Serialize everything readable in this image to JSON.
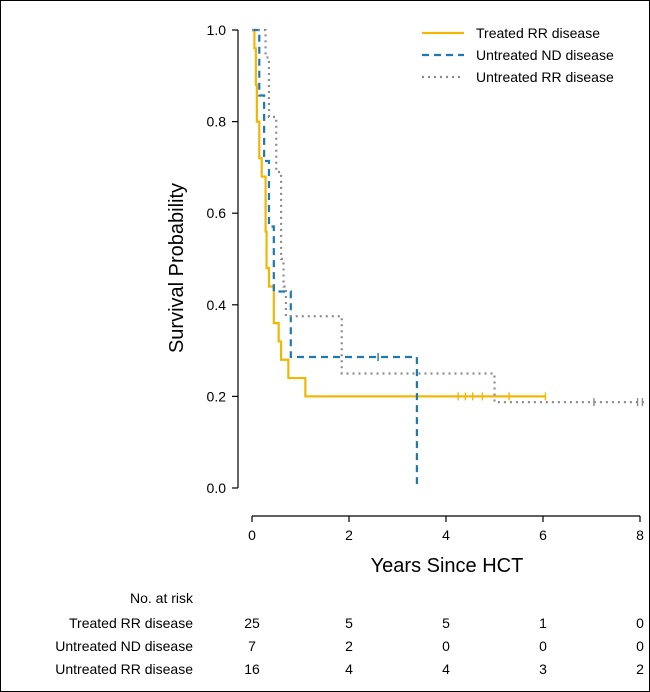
{
  "chart_data": {
    "type": "line",
    "subtype": "kaplan-meier",
    "xlabel": "Years Since HCT",
    "ylabel": "Survival Probability",
    "xlim": [
      0,
      8
    ],
    "ylim": [
      0,
      1
    ],
    "x_ticks": [
      0,
      2,
      4,
      6,
      8
    ],
    "y_ticks": [
      "0.0",
      "0.2",
      "0.4",
      "0.6",
      "0.8",
      "1.0"
    ],
    "legend_position": "top-right",
    "series": [
      {
        "name": "Treated RR disease",
        "color": "#f2b705",
        "style": "solid",
        "steps": [
          [
            0,
            1.0
          ],
          [
            0.05,
            0.96
          ],
          [
            0.08,
            0.88
          ],
          [
            0.1,
            0.8
          ],
          [
            0.15,
            0.72
          ],
          [
            0.2,
            0.68
          ],
          [
            0.28,
            0.56
          ],
          [
            0.3,
            0.48
          ],
          [
            0.35,
            0.44
          ],
          [
            0.45,
            0.36
          ],
          [
            0.55,
            0.32
          ],
          [
            0.6,
            0.28
          ],
          [
            0.75,
            0.24
          ],
          [
            1.1,
            0.2
          ],
          [
            6.05,
            0.2
          ]
        ],
        "censor_x": [
          4.25,
          4.4,
          4.55,
          4.75,
          5.3,
          6.05
        ]
      },
      {
        "name": "Untreated ND disease",
        "color": "#1f78b4",
        "style": "dashed",
        "steps": [
          [
            0,
            1.0
          ],
          [
            0.15,
            0.857
          ],
          [
            0.25,
            0.714
          ],
          [
            0.35,
            0.571
          ],
          [
            0.45,
            0.429
          ],
          [
            0.8,
            0.286
          ],
          [
            3.4,
            0.0
          ],
          [
            3.4,
            0.0
          ]
        ],
        "censor_x": [
          2.6
        ]
      },
      {
        "name": "Untreated RR disease",
        "color": "#8c8c8c",
        "style": "dotted",
        "steps": [
          [
            0,
            1.0
          ],
          [
            0.28,
            0.94
          ],
          [
            0.35,
            0.81
          ],
          [
            0.5,
            0.69
          ],
          [
            0.6,
            0.5
          ],
          [
            0.65,
            0.44
          ],
          [
            0.7,
            0.375
          ],
          [
            1.85,
            0.25
          ],
          [
            5.0,
            0.1875
          ],
          [
            8.1,
            0.1875
          ]
        ],
        "censor_x": [
          7.05,
          7.95,
          8.05
        ]
      }
    ],
    "risk_table": {
      "title": "No. at risk",
      "times": [
        0,
        2,
        4,
        6,
        8
      ],
      "rows": [
        {
          "label": "Treated RR disease",
          "counts": [
            "25",
            "5",
            "5",
            "1",
            "0"
          ]
        },
        {
          "label": "Untreated ND disease",
          "counts": [
            "7",
            "2",
            "0",
            "0",
            "0"
          ]
        },
        {
          "label": "Untreated RR disease",
          "counts": [
            "16",
            "4",
            "4",
            "3",
            "2"
          ]
        }
      ]
    }
  }
}
